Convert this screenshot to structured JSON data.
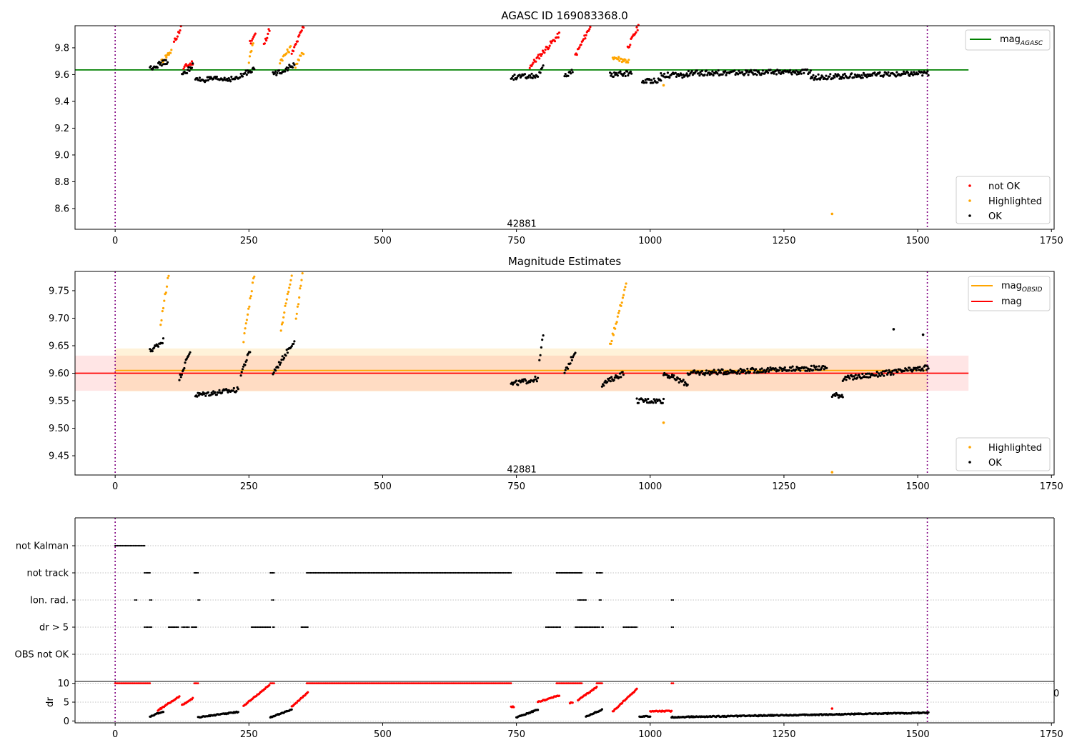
{
  "chart_data": [
    {
      "type": "scatter",
      "title": "AGASC ID 169083368.0",
      "xlim": [
        -75,
        1755
      ],
      "ylim": [
        8.445,
        9.965
      ],
      "xticks": [
        0,
        250,
        500,
        750,
        1000,
        1250,
        1500,
        1750
      ],
      "yticks": [
        8.6,
        8.8,
        9.0,
        9.2,
        9.4,
        9.6,
        9.8
      ],
      "vlines": [
        0,
        1518
      ],
      "annotation": {
        "text": "42881",
        "x": 760,
        "y": 8.485
      },
      "hlines": [
        {
          "name": "mag_AGASC",
          "label_main": "mag",
          "label_sub": "AGASC",
          "y": 9.635,
          "x0": -75,
          "x1": 1595,
          "color": "#008000"
        }
      ],
      "series": [
        {
          "name": "not OK",
          "color": "#ff0000",
          "segments": [
            [
              110,
              9.84,
              123,
              9.95
            ],
            [
              128,
              9.65,
              145,
              9.69
            ],
            [
              252,
              9.84,
              262,
              9.9
            ],
            [
              278,
              9.82,
              290,
              9.96
            ],
            [
              330,
              9.75,
              352,
              9.96
            ],
            [
              775,
              9.66,
              830,
              9.9
            ],
            [
              860,
              9.74,
              888,
              9.96
            ],
            [
              958,
              9.8,
              978,
              9.96
            ]
          ]
        },
        {
          "name": "Highlighted",
          "color": "#ffa500",
          "segments": [
            [
              85,
              9.69,
              105,
              9.78
            ],
            [
              250,
              9.7,
              258,
              9.84
            ],
            [
              308,
              9.7,
              328,
              9.8
            ],
            [
              337,
              9.67,
              352,
              9.77
            ],
            [
              930,
              9.73,
              960,
              9.7
            ]
          ],
          "points": [
            [
              1025,
              9.52
            ],
            [
              1340,
              8.56
            ]
          ]
        },
        {
          "name": "OK",
          "color": "#000000",
          "segments": [
            [
              65,
              9.65,
              98,
              9.7
            ],
            [
              125,
              9.59,
              145,
              9.67
            ],
            [
              150,
              9.56,
              230,
              9.57
            ],
            [
              232,
              9.58,
              260,
              9.65
            ],
            [
              295,
              9.6,
              335,
              9.67
            ],
            [
              740,
              9.58,
              790,
              9.59
            ],
            [
              793,
              9.6,
              800,
              9.65
            ],
            [
              840,
              9.59,
              855,
              9.62
            ],
            [
              925,
              9.6,
              965,
              9.61
            ],
            [
              985,
              9.55,
              1020,
              9.56
            ],
            [
              1020,
              9.6,
              1070,
              9.59
            ],
            [
              1070,
              9.61,
              1300,
              9.62
            ],
            [
              1300,
              9.58,
              1520,
              9.61
            ]
          ]
        }
      ],
      "legends": [
        {
          "entries": [
            "mag_AGASC"
          ],
          "position": "top-right"
        },
        {
          "entries": [
            "not OK",
            "Highlighted",
            "OK"
          ],
          "position": "bottom-right"
        }
      ]
    },
    {
      "type": "scatter",
      "title": "Magnitude Estimates",
      "xlim": [
        -75,
        1755
      ],
      "ylim": [
        9.415,
        9.785
      ],
      "xticks": [
        0,
        250,
        500,
        750,
        1000,
        1250,
        1500,
        1750
      ],
      "yticks": [
        9.45,
        9.5,
        9.55,
        9.6,
        9.65,
        9.7,
        9.75
      ],
      "vlines": [
        0,
        1518
      ],
      "annotation": {
        "text": "42881",
        "x": 760,
        "y": 9.425
      },
      "bands": [
        {
          "y0": 9.568,
          "y1": 9.632,
          "x0": -75,
          "x1": 1595,
          "color": "#ff0000",
          "opacity": 0.1
        },
        {
          "y0": 9.567,
          "y1": 9.645,
          "x0": 0,
          "x1": 1518,
          "color": "#ffa500",
          "opacity": 0.15
        }
      ],
      "hlines": [
        {
          "name": "mag_OBSID",
          "label_main": "mag",
          "label_sub": "OBSID",
          "y": 9.605,
          "x0": 0,
          "x1": 1518,
          "color": "#ffa500"
        },
        {
          "name": "mag",
          "label_main": "mag",
          "label_sub": "",
          "y": 9.6,
          "x0": -75,
          "x1": 1595,
          "color": "#ff0000"
        }
      ],
      "series": [
        {
          "name": "Highlighted",
          "color": "#ffa500",
          "segments": [
            [
              85,
              9.69,
              100,
              9.78
            ],
            [
              240,
              9.66,
              260,
              9.78
            ],
            [
              310,
              9.68,
              330,
              9.78
            ],
            [
              338,
              9.7,
              350,
              9.78
            ],
            [
              925,
              9.65,
              955,
              9.76
            ]
          ],
          "points": [
            [
              1025,
              9.51
            ],
            [
              1340,
              9.42
            ]
          ]
        },
        {
          "name": "OK",
          "color": "#000000",
          "segments": [
            [
              65,
              9.64,
              90,
              9.66
            ],
            [
              120,
              9.59,
              140,
              9.64
            ],
            [
              150,
              9.56,
              230,
              9.57
            ],
            [
              235,
              9.6,
              252,
              9.64
            ],
            [
              295,
              9.6,
              335,
              9.66
            ],
            [
              740,
              9.58,
              790,
              9.59
            ],
            [
              793,
              9.62,
              800,
              9.67
            ],
            [
              840,
              9.6,
              860,
              9.64
            ],
            [
              910,
              9.58,
              950,
              9.6
            ],
            [
              975,
              9.55,
              1025,
              9.55
            ],
            [
              1025,
              9.6,
              1070,
              9.58
            ],
            [
              1070,
              9.6,
              1330,
              9.61
            ],
            [
              1340,
              9.56,
              1360,
              9.56
            ],
            [
              1360,
              9.59,
              1520,
              9.61
            ]
          ],
          "points": [
            [
              1455,
              9.68
            ],
            [
              1510,
              9.67
            ]
          ]
        }
      ],
      "legends": [
        {
          "entries": [
            "mag_OBSID",
            "mag"
          ],
          "position": "top-right"
        },
        {
          "entries": [
            "Highlighted",
            "OK"
          ],
          "position": "bottom-right"
        }
      ]
    },
    {
      "type": "scatter",
      "title": "",
      "xlim": [
        -75,
        1755
      ],
      "categories": [
        "not Kalman",
        "not track",
        "Ion. rad.",
        "dr > 5",
        "OBS not OK"
      ],
      "vlines": [
        0,
        1518
      ],
      "flag_runs": [
        {
          "row": "not Kalman",
          "runs": [
            [
              0,
              55
            ]
          ]
        },
        {
          "row": "not track",
          "runs": [
            [
              55,
              65
            ],
            [
              148,
              155
            ],
            [
              290,
              297
            ],
            [
              358,
              740
            ],
            [
              825,
              872
            ],
            [
              900,
              910
            ]
          ]
        },
        {
          "row": "Ion. rad.",
          "runs": [
            [
              37,
              40
            ],
            [
              65,
              68
            ],
            [
              155,
              158
            ],
            [
              293,
              296
            ],
            [
              865,
              880
            ],
            [
              905,
              908
            ],
            [
              1040,
              1043
            ]
          ]
        },
        {
          "row": "dr > 5",
          "runs": [
            [
              55,
              68
            ],
            [
              100,
              118
            ],
            [
              125,
              138
            ],
            [
              143,
              152
            ],
            [
              255,
              290
            ],
            [
              295,
              297
            ],
            [
              348,
              360
            ],
            [
              805,
              832
            ],
            [
              860,
              905
            ],
            [
              910,
              912
            ],
            [
              950,
              975
            ],
            [
              1040,
              1043
            ]
          ]
        },
        {
          "row": "OBS not OK",
          "runs": []
        }
      ]
    },
    {
      "type": "scatter",
      "title": "",
      "ylabel": "dr",
      "xlim": [
        -75,
        1755
      ],
      "ylim": [
        -0.5,
        10.5
      ],
      "xticks": [
        0,
        250,
        500,
        750,
        1000,
        1250,
        1500,
        1750
      ],
      "yticks": [
        0,
        5,
        10
      ],
      "clipped_tick": "0",
      "vlines": [
        0,
        1518
      ],
      "series": [
        {
          "name": "not OK",
          "color": "#ff0000",
          "runs_at_10": [
            [
              0,
              65
            ],
            [
              148,
              155
            ],
            [
              290,
              297
            ],
            [
              358,
              740
            ],
            [
              825,
              872
            ],
            [
              900,
              910
            ],
            [
              1040,
              1043
            ]
          ],
          "segments": [
            [
              80,
              2.8,
              120,
              6.5
            ],
            [
              125,
              4.2,
              145,
              6.0
            ],
            [
              240,
              4.0,
              288,
              9.5
            ],
            [
              330,
              3.8,
              360,
              7.5
            ],
            [
              740,
              3.8,
              745,
              3.8
            ],
            [
              790,
              5.0,
              830,
              6.8
            ],
            [
              850,
              4.8,
              855,
              4.8
            ],
            [
              865,
              5.5,
              900,
              9.0
            ],
            [
              930,
              2.5,
              975,
              8.5
            ],
            [
              1000,
              2.6,
              1040,
              2.6
            ]
          ],
          "points": [
            [
              1340,
              3.3
            ]
          ]
        },
        {
          "name": "OK",
          "color": "#000000",
          "segments": [
            [
              65,
              1.2,
              90,
              2.5
            ],
            [
              155,
              1.0,
              230,
              2.4
            ],
            [
              290,
              1.0,
              330,
              3.0
            ],
            [
              750,
              1.0,
              790,
              3.0
            ],
            [
              880,
              1.2,
              910,
              3.0
            ],
            [
              980,
              1.2,
              1000,
              1.2
            ],
            [
              1040,
              1.0,
              1520,
              2.2
            ]
          ]
        }
      ]
    }
  ]
}
